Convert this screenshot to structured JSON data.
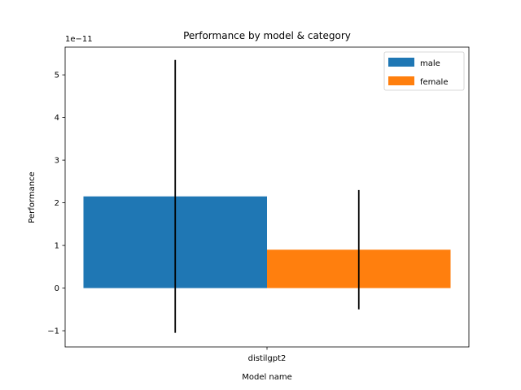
{
  "chart_data": {
    "type": "bar",
    "title": "Performance by model & category",
    "xlabel": "Model name",
    "ylabel": "Performance",
    "y_scale_label": "1e−11",
    "y_scale_factor": 1e-11,
    "categories": [
      "distilgpt2"
    ],
    "series": [
      {
        "name": "male",
        "color": "#1f77b4",
        "values": [
          2.15e-11
        ],
        "error": [
          3.2e-11
        ]
      },
      {
        "name": "female",
        "color": "#ff7f0e",
        "values": [
          9e-12
        ],
        "error": [
          1.4e-11
        ]
      }
    ],
    "ylim": [
      -1.38e-11,
      5.65e-11
    ],
    "yticks": [
      -1,
      0,
      1,
      2,
      3,
      4,
      5
    ],
    "ytick_labels": [
      "−1",
      "0",
      "1",
      "2",
      "3",
      "4",
      "5"
    ],
    "legend_position": "top-right",
    "grid": false
  }
}
